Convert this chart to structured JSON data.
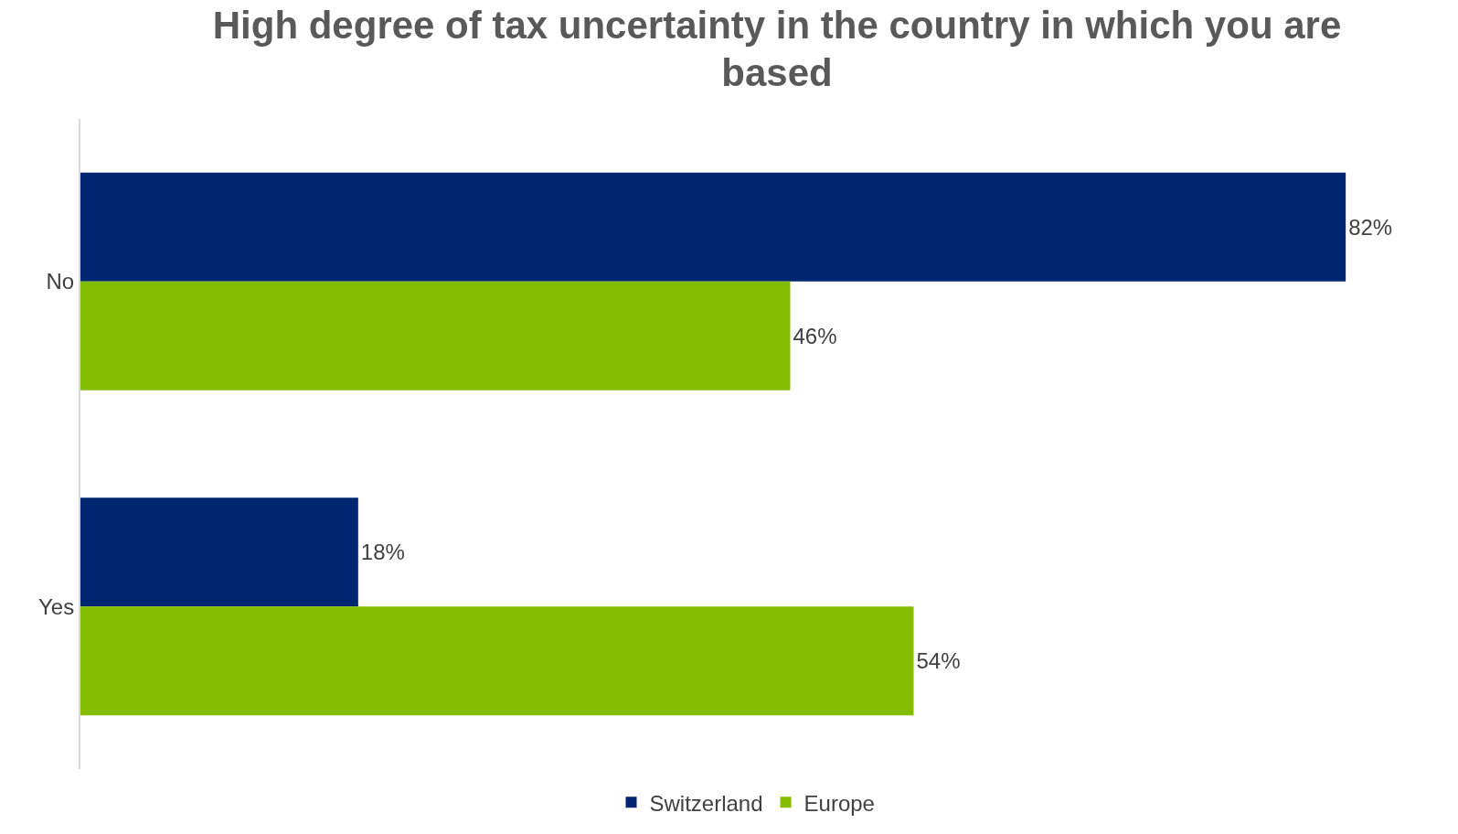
{
  "chart_data": {
    "type": "bar",
    "orientation": "horizontal",
    "title": "High degree of tax uncertainty in the country in which you are based",
    "categories": [
      "No",
      "Yes"
    ],
    "series": [
      {
        "name": "Switzerland",
        "color": "#002672",
        "values": [
          82,
          18
        ],
        "value_labels": [
          "82%",
          "18%"
        ]
      },
      {
        "name": "Europe",
        "color": "#84bd00",
        "values": [
          46,
          54
        ],
        "value_labels": [
          "46%",
          "54%"
        ]
      }
    ],
    "grid": false,
    "legend": "bottom",
    "tick_labels": "y"
  }
}
